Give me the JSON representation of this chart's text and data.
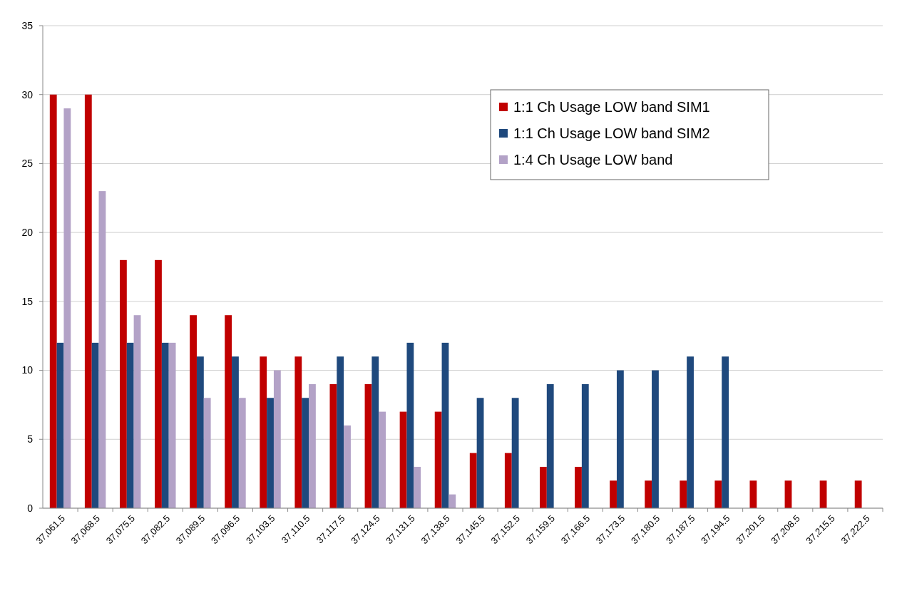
{
  "chart_data": {
    "type": "bar",
    "categories": [
      "37,061.5",
      "37,068.5",
      "37,075.5",
      "37,082.5",
      "37,089.5",
      "37,096.5",
      "37,103.5",
      "37,110.5",
      "37,117.5",
      "37,124.5",
      "37,131.5",
      "37,138.5",
      "37,145.5",
      "37,152.5",
      "37,159.5",
      "37,166.5",
      "37,173.5",
      "37,180.5",
      "37,187.5",
      "37,194.5",
      "37,201.5",
      "37,208.5",
      "37,215.5",
      "37,222.5"
    ],
    "series": [
      {
        "name": "1:1 Ch Usage LOW band SIM1",
        "color": "#c00000",
        "values": [
          30,
          30,
          18,
          18,
          14,
          14,
          11,
          11,
          9,
          9,
          7,
          7,
          4,
          4,
          3,
          3,
          2,
          2,
          2,
          2,
          2,
          2,
          2,
          2
        ]
      },
      {
        "name": "1:1 Ch Usage LOW band SIM2",
        "color": "#1f497d",
        "values": [
          12,
          12,
          12,
          12,
          11,
          11,
          8,
          8,
          11,
          11,
          12,
          12,
          8,
          8,
          9,
          9,
          10,
          10,
          11,
          11,
          null,
          null,
          null,
          null
        ]
      },
      {
        "name": "1:4 Ch Usage LOW band",
        "color": "#b3a2c7",
        "values": [
          29,
          23,
          14,
          12,
          8,
          8,
          10,
          9,
          6,
          7,
          3,
          1,
          null,
          null,
          null,
          null,
          null,
          null,
          null,
          null,
          null,
          null,
          null,
          null
        ]
      }
    ],
    "ylim": [
      0,
      35
    ],
    "yticks": [
      0,
      5,
      10,
      15,
      20,
      25,
      30,
      35
    ],
    "grid": "y",
    "legend": "top right"
  }
}
